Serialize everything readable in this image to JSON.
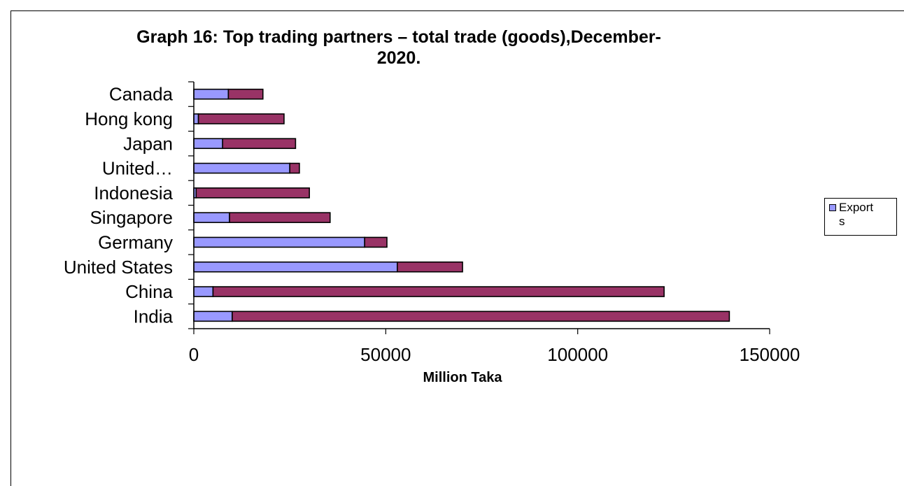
{
  "chart_data": {
    "type": "bar",
    "orientation": "horizontal",
    "stacked": true,
    "title": "Graph 16: Top trading partners – total trade (goods),December-\n2020.",
    "xlabel": "Million Taka",
    "ylabel": "",
    "xlim": [
      0,
      150000
    ],
    "x_ticks": [
      "0",
      "50000",
      "100000",
      "150000"
    ],
    "categories": [
      "Canada",
      "Hong kong",
      "Japan",
      "United…",
      "Indonesia",
      "Singapore",
      "Germany",
      "United States",
      "China",
      "India"
    ],
    "series": [
      {
        "name": "Exports",
        "color": "#9999ff",
        "values": [
          9000,
          1200,
          7500,
          25000,
          600,
          9300,
          44500,
          53000,
          5000,
          10000
        ]
      },
      {
        "color": "#993366",
        "values": [
          9000,
          22300,
          19000,
          2500,
          29500,
          26200,
          5800,
          17000,
          117500,
          129500
        ]
      }
    ],
    "grid": false,
    "legend": {
      "position": "right",
      "label": "Export\ns"
    }
  }
}
